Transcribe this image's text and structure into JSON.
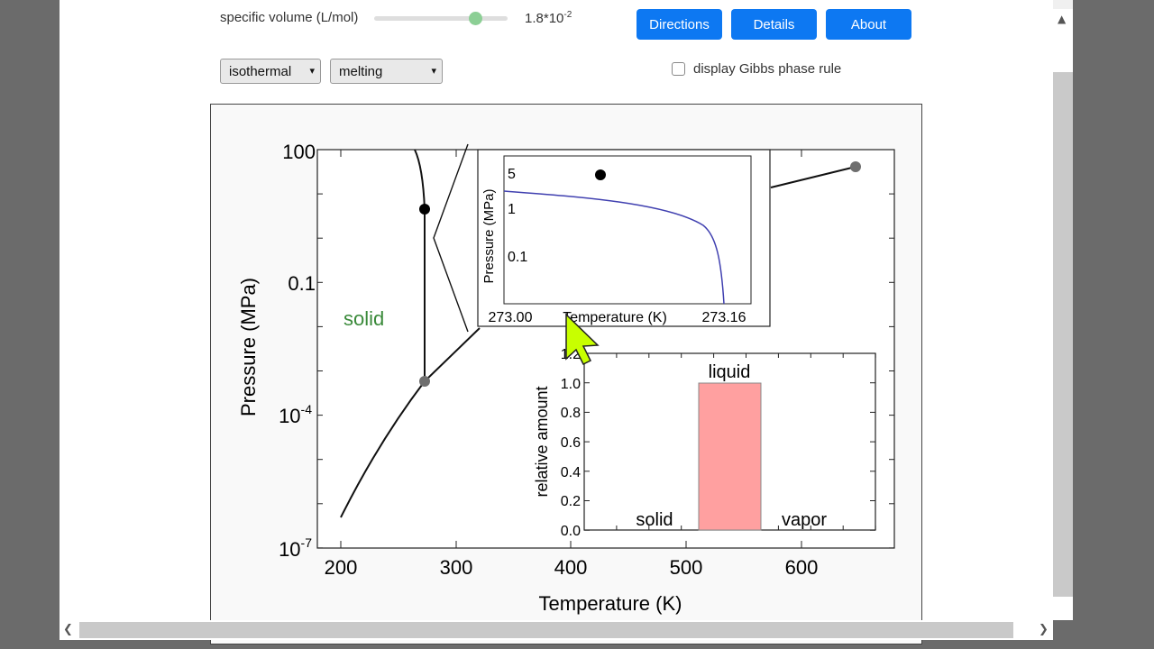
{
  "controls": {
    "slider_label": "specific volume (L/mol)",
    "slider_value_base": "1.8*10",
    "slider_value_exp": "-2",
    "buttons": {
      "directions": "Directions",
      "details": "Details",
      "about": "About"
    },
    "select_process": "isothermal",
    "select_transition": "melting",
    "checkbox_label": "display Gibbs phase rule"
  },
  "main_plot": {
    "xlabel": "Temperature (K)",
    "ylabel": "Pressure (MPa)",
    "x_ticks": [
      "200",
      "300",
      "400",
      "500",
      "600"
    ],
    "y_ticks": [
      {
        "base": "100",
        "exp": ""
      },
      {
        "base": "0.1",
        "exp": ""
      },
      {
        "base": "10",
        "exp": "-4"
      },
      {
        "base": "10",
        "exp": "-7"
      }
    ],
    "region_label": "solid",
    "region_color": "#3a8a3a"
  },
  "inset_plot": {
    "xlabel": "Temperature (K)",
    "ylabel": "Pressure (MPa)",
    "x_ticks": [
      "273.00",
      "273.16"
    ],
    "y_ticks": [
      "5",
      "1",
      "0.1"
    ],
    "curve_color": "#4040b0"
  },
  "bar_plot": {
    "ylabel": "relative amount",
    "y_ticks": [
      "1.2",
      "1.0",
      "0.8",
      "0.6",
      "0.4",
      "0.2",
      "0.0"
    ],
    "bar_color": "#ffa0a0"
  },
  "chart_data": [
    {
      "type": "line",
      "xlabel": "Temperature (K)",
      "ylabel": "Pressure (MPa)",
      "y_scale": "log",
      "xlim": [
        180,
        660
      ],
      "ylim": [
        1e-07,
        100
      ],
      "series": [
        {
          "x": [
            200,
            230,
            260,
            273.16
          ],
          "y": [
            2e-07,
            5e-06,
            0.00015,
            0.00061
          ]
        },
        {
          "x": [
            273.16,
            273.16,
            272
          ],
          "y": [
            0.00061,
            10,
            100
          ]
        },
        {
          "x": [
            273.16,
            300,
            400,
            500,
            647
          ],
          "y": [
            0.00061,
            0.0035,
            0.25,
            2.6,
            22
          ]
        }
      ],
      "points": [
        {
          "x": 273.16,
          "y": 0.00061
        },
        {
          "x": 647,
          "y": 22
        },
        {
          "x": 273.16,
          "y": 5
        }
      ]
    },
    {
      "type": "line",
      "xlabel": "Temperature (K)",
      "ylabel": "Pressure (MPa)",
      "xlim": [
        273.0,
        273.16
      ],
      "series": [
        {
          "x": [
            273.0,
            273.05,
            273.1,
            273.14,
            273.16
          ],
          "y": [
            2,
            1.6,
            1.0,
            0.3,
            0.0006
          ]
        }
      ],
      "points": [
        {
          "x": 273.08,
          "y": 5
        }
      ]
    },
    {
      "type": "bar",
      "ylabel": "relative amount",
      "categories": [
        "solid",
        "liquid",
        "vapor"
      ],
      "values": [
        0,
        1.0,
        0
      ],
      "ylim": [
        0,
        1.2
      ]
    }
  ]
}
